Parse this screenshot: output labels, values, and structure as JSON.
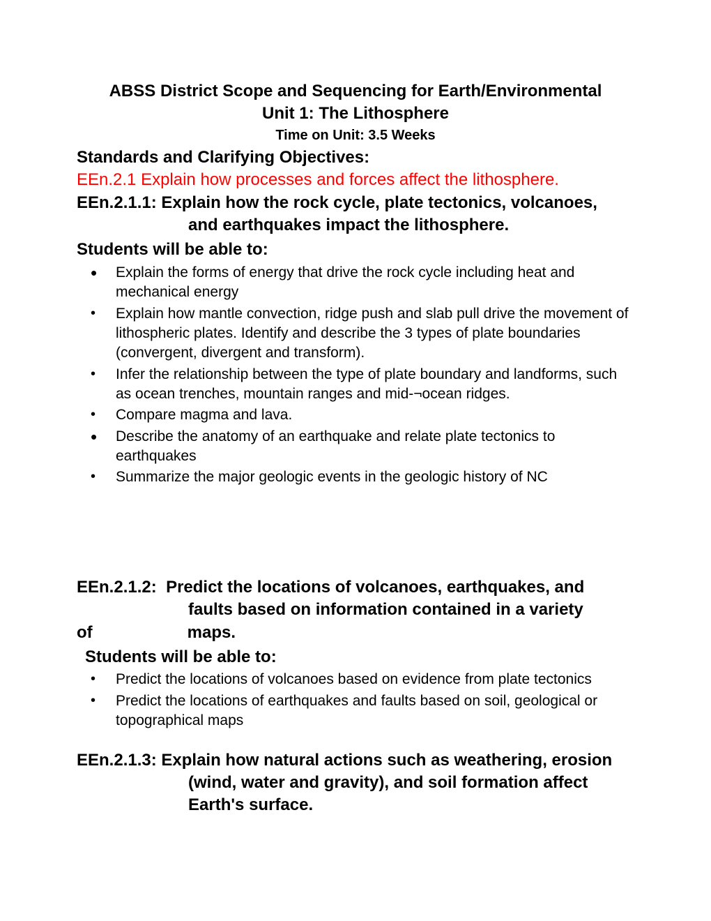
{
  "title_line1": "ABSS District Scope and Sequencing for Earth/Environmental",
  "title_line2": "Unit 1:   The Lithosphere",
  "time_line": "Time on Unit:   3.5 Weeks",
  "section_header": "Standards and Clarifying Objectives:",
  "standard_red": "EEn.2.1 Explain how processes and forces affect the lithosphere.",
  "students_will": "Students will be able to:",
  "objectives": {
    "o1": {
      "code": "EEn.2.1.1:",
      "line1": "Explain how the rock cycle, plate tectonics, volcanoes,",
      "line2": "and earthquakes impact the lithosphere.",
      "bullets": [
        "Explain the forms of energy that drive the rock cycle including heat and mechanical energy",
        "Explain how mantle convection, ridge push and slab pull drive the movement of lithospheric plates. Identify and describe the 3 types of plate boundaries (convergent, divergent and transform).",
        "Infer the relationship between the type of plate boundary and landforms, such as ocean trenches, mountain ranges and mid-¬ocean ridges.",
        "Compare magma and lava.",
        "Describe the anatomy of an earthquake and relate plate tectonics to earthquakes",
        "Summarize the major geologic events in the geologic history of NC"
      ]
    },
    "o2": {
      "code": "EEn.2.1.2:",
      "line1": "Predict the locations of volcanoes, earthquakes, and",
      "line2": "faults based on information contained in a variety",
      "line3_left": "of",
      "line3_right": "maps.",
      "bullets": [
        "Predict the locations of volcanoes based on evidence from plate tectonics",
        "Predict the locations of earthquakes and faults based on soil, geological or topographical maps"
      ]
    },
    "o3": {
      "code": "EEn.2.1.3:",
      "line1": "Explain how natural actions such as weathering, erosion",
      "line2": "(wind, water and gravity), and soil formation affect",
      "line3": "Earth's surface."
    }
  },
  "colors": {
    "text": "#000000",
    "accent": "#ff0000",
    "background": "#ffffff"
  },
  "typography": {
    "family": "Comic Sans MS",
    "title_size": 24,
    "time_size": 20,
    "body_size": 21
  }
}
